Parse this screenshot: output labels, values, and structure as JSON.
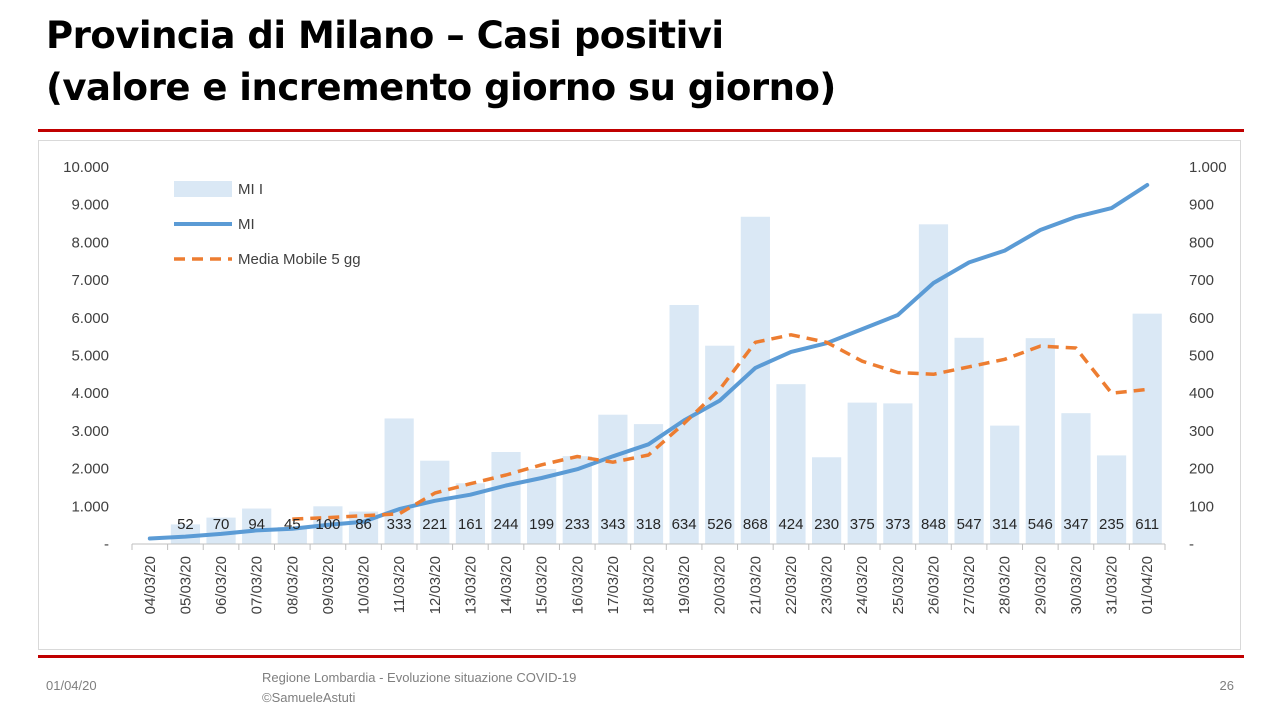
{
  "slide": {
    "title_line1": "Provincia di Milano – Casi positivi",
    "title_line2": "(valore e incremento giorno su giorno)",
    "footer_date": "01/04/20",
    "footer_source_line1": "Regione Lombardia - Evoluzione situazione COVID-19",
    "footer_source_line2": "©SamueleAstuti",
    "page_number": "26"
  },
  "chart_data": {
    "type": "bar",
    "title": "",
    "categories": [
      "04/03/20",
      "05/03/20",
      "06/03/20",
      "07/03/20",
      "08/03/20",
      "09/03/20",
      "10/03/20",
      "11/03/20",
      "12/03/20",
      "13/03/20",
      "14/03/20",
      "15/03/20",
      "16/03/20",
      "17/03/20",
      "18/03/20",
      "19/03/20",
      "20/03/20",
      "21/03/20",
      "22/03/20",
      "23/03/20",
      "24/03/20",
      "25/03/20",
      "26/03/20",
      "27/03/20",
      "28/03/20",
      "29/03/20",
      "30/03/20",
      "31/03/20",
      "01/04/20"
    ],
    "series": [
      {
        "name": "MI I",
        "type": "bar",
        "axis": "right",
        "color": "#dae8f5",
        "values": [
          null,
          52,
          70,
          94,
          45,
          100,
          86,
          333,
          221,
          161,
          244,
          199,
          233,
          343,
          318,
          634,
          526,
          868,
          424,
          230,
          375,
          373,
          848,
          547,
          314,
          546,
          347,
          235,
          611
        ],
        "data_labels": [
          "",
          "52",
          "70",
          "94",
          "45",
          "100",
          "86",
          "333",
          "221",
          "161",
          "244",
          "199",
          "233",
          "343",
          "318",
          "634",
          "526",
          "868",
          "424",
          "230",
          "375",
          "373",
          "848",
          "547",
          "314",
          "546",
          "347",
          "235",
          "611"
        ]
      },
      {
        "name": "MI",
        "type": "line",
        "axis": "left",
        "color": "#5b9bd5",
        "values": [
          145,
          197,
          267,
          361,
          406,
          506,
          592,
          925,
          1146,
          1307,
          1551,
          1750,
          1983,
          2326,
          2644,
          3278,
          3804,
          4672,
          5096,
          5326,
          5701,
          6074,
          6922,
          7469,
          7783,
          8329,
          8676,
          8911,
          9522
        ]
      },
      {
        "name": "Media Mobile 5 gg",
        "type": "line",
        "axis": "right",
        "color": "#ed7d31",
        "dashed": true,
        "values": [
          null,
          null,
          null,
          null,
          66,
          70,
          75,
          80,
          135,
          160,
          183,
          210,
          232,
          217,
          236,
          320,
          410,
          535,
          555,
          535,
          485,
          455,
          450,
          470,
          490,
          525,
          520,
          400,
          410
        ]
      }
    ],
    "y_left": {
      "min": 0,
      "max": 10000,
      "ticks": [
        "-",
        "1.000",
        "2.000",
        "3.000",
        "4.000",
        "5.000",
        "6.000",
        "7.000",
        "8.000",
        "9.000",
        "10.000"
      ]
    },
    "y_right": {
      "min": 0,
      "max": 1000,
      "ticks": [
        "-",
        "100",
        "200",
        "300",
        "400",
        "500",
        "600",
        "700",
        "800",
        "900",
        "1.000"
      ]
    },
    "legend_position": "top-left",
    "grid": false
  }
}
